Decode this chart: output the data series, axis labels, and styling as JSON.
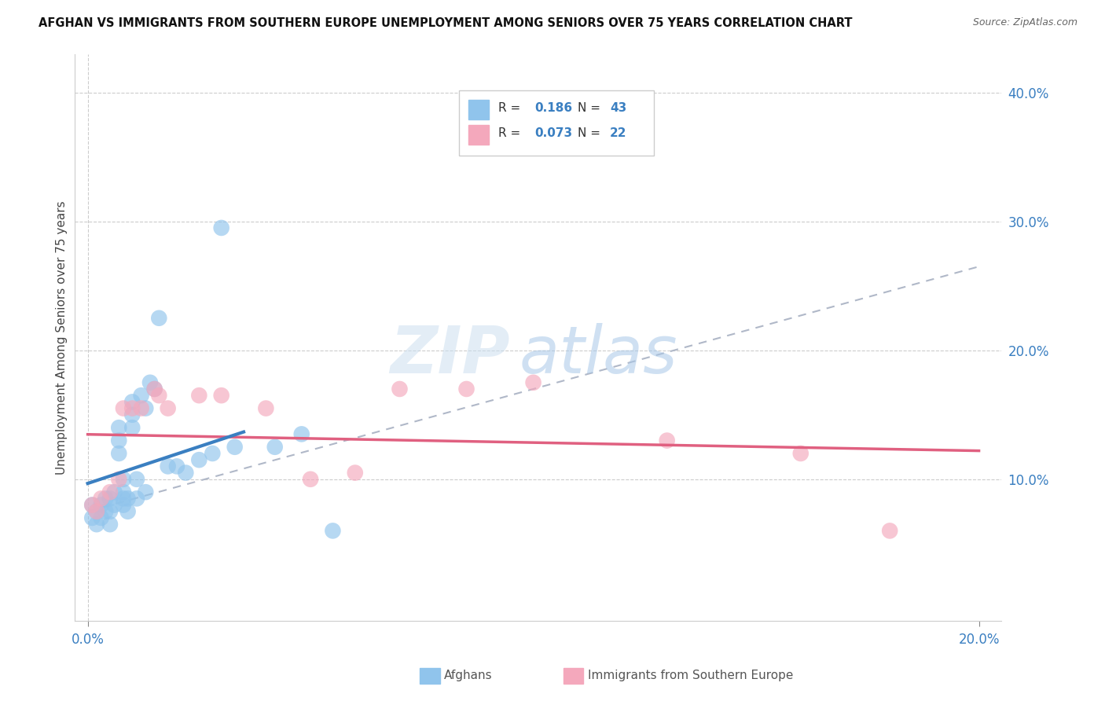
{
  "title": "AFGHAN VS IMMIGRANTS FROM SOUTHERN EUROPE UNEMPLOYMENT AMONG SENIORS OVER 75 YEARS CORRELATION CHART",
  "source": "Source: ZipAtlas.com",
  "ylabel": "Unemployment Among Seniors over 75 years",
  "xlabel_afghans": "Afghans",
  "xlabel_immigrants": "Immigrants from Southern Europe",
  "xlim": [
    -0.003,
    0.205
  ],
  "ylim": [
    -0.01,
    0.43
  ],
  "R_afghan": 0.186,
  "N_afghan": 43,
  "R_immigrant": 0.073,
  "N_immigrant": 22,
  "color_afghan": "#90c4ec",
  "color_immigrant": "#f4a8bc",
  "color_afghan_line": "#3a7fc1",
  "color_immigrant_line": "#e06080",
  "color_dashed_line": "#b0b8c8",
  "afghans_x": [
    0.001,
    0.001,
    0.002,
    0.002,
    0.003,
    0.003,
    0.004,
    0.004,
    0.005,
    0.005,
    0.005,
    0.006,
    0.006,
    0.007,
    0.007,
    0.007,
    0.008,
    0.008,
    0.008,
    0.008,
    0.009,
    0.009,
    0.01,
    0.01,
    0.01,
    0.011,
    0.011,
    0.012,
    0.013,
    0.013,
    0.014,
    0.015,
    0.016,
    0.018,
    0.02,
    0.022,
    0.025,
    0.028,
    0.03,
    0.033,
    0.042,
    0.048,
    0.055
  ],
  "afghans_y": [
    0.08,
    0.07,
    0.065,
    0.075,
    0.07,
    0.08,
    0.075,
    0.085,
    0.065,
    0.075,
    0.085,
    0.08,
    0.09,
    0.12,
    0.13,
    0.14,
    0.08,
    0.085,
    0.09,
    0.1,
    0.075,
    0.085,
    0.14,
    0.15,
    0.16,
    0.085,
    0.1,
    0.165,
    0.09,
    0.155,
    0.175,
    0.17,
    0.225,
    0.11,
    0.11,
    0.105,
    0.115,
    0.12,
    0.295,
    0.125,
    0.125,
    0.135,
    0.06
  ],
  "immigrants_x": [
    0.001,
    0.002,
    0.003,
    0.005,
    0.007,
    0.008,
    0.01,
    0.012,
    0.015,
    0.016,
    0.018,
    0.025,
    0.03,
    0.04,
    0.05,
    0.06,
    0.07,
    0.085,
    0.1,
    0.13,
    0.16,
    0.18
  ],
  "immigrants_y": [
    0.08,
    0.075,
    0.085,
    0.09,
    0.1,
    0.155,
    0.155,
    0.155,
    0.17,
    0.165,
    0.155,
    0.165,
    0.165,
    0.155,
    0.1,
    0.105,
    0.17,
    0.17,
    0.175,
    0.13,
    0.12,
    0.06
  ]
}
